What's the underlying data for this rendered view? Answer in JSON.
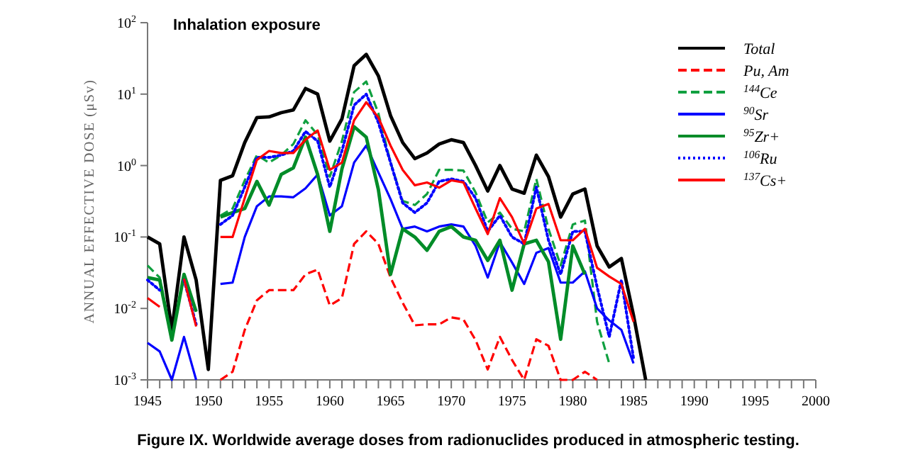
{
  "chart_data": {
    "type": "line",
    "title": "Inhalation exposure",
    "ylabel": "ANNUAL EFFECTIVE DOSE  (μSv)",
    "annotations": [
      "Figure IX.  Worldwide average doses from radionuclides produced in atmospheric testing."
    ],
    "x": [
      1945,
      1946,
      1947,
      1948,
      1949,
      1950,
      1951,
      1952,
      1953,
      1954,
      1955,
      1956,
      1957,
      1958,
      1959,
      1960,
      1961,
      1962,
      1963,
      1964,
      1965,
      1966,
      1967,
      1968,
      1969,
      1970,
      1971,
      1972,
      1973,
      1974,
      1975,
      1976,
      1977,
      1978,
      1979,
      1980,
      1981,
      1982,
      1983,
      1984,
      1985,
      1986
    ],
    "series": [
      {
        "name": "Total",
        "color": "#000000",
        "line_style": "solid",
        "values": [
          0.1,
          0.08,
          0.005,
          0.1,
          0.025,
          0.0014,
          0.62,
          0.72,
          2.1,
          4.7,
          4.8,
          5.5,
          6,
          12,
          10,
          2.2,
          4.5,
          25,
          36,
          18,
          5,
          2.1,
          1.25,
          1.5,
          2,
          2.3,
          2.1,
          1,
          0.44,
          1,
          0.47,
          0.41,
          1.4,
          0.7,
          0.19,
          0.4,
          0.47,
          0.075,
          0.038,
          0.05,
          0.008,
          0.001
        ]
      },
      {
        "name": "Pu, Am",
        "color": "#ff0000",
        "line_style": "dashed",
        "values": [
          null,
          null,
          null,
          null,
          null,
          null,
          0.001,
          0.0013,
          0.005,
          0.013,
          0.018,
          0.018,
          0.018,
          0.03,
          0.035,
          0.011,
          0.014,
          0.08,
          0.12,
          0.08,
          0.027,
          0.012,
          0.0058,
          0.006,
          0.006,
          0.0075,
          0.007,
          0.0036,
          0.0014,
          0.004,
          0.0019,
          0.001,
          0.0037,
          0.003,
          0.001,
          0.001,
          0.0013,
          0.001,
          null,
          null,
          null,
          null
        ]
      },
      {
        "name": "$^{144}$Ce",
        "color": "#10a040",
        "line_style": "dashed",
        "values": [
          0.04,
          0.027,
          0.0037,
          0.03,
          0.009,
          null,
          0.2,
          0.25,
          0.62,
          1.4,
          1.1,
          1.4,
          2,
          4.3,
          2.7,
          0.7,
          2.2,
          10.7,
          15,
          5.4,
          1.1,
          0.32,
          0.28,
          0.4,
          0.87,
          0.87,
          0.85,
          0.42,
          0.16,
          0.22,
          0.13,
          0.12,
          0.65,
          0.13,
          0.04,
          0.15,
          0.17,
          0.0065,
          0.0017,
          null,
          null,
          null
        ]
      },
      {
        "name": "$^{90}$Sr",
        "color": "#0000ff",
        "line_style": "solid",
        "values": [
          0.0033,
          0.0025,
          0.001,
          0.004,
          0.001,
          null,
          0.022,
          0.023,
          0.1,
          0.27,
          0.37,
          0.37,
          0.36,
          0.48,
          0.75,
          0.2,
          0.27,
          1.1,
          1.9,
          0.8,
          0.34,
          0.13,
          0.14,
          0.12,
          0.14,
          0.15,
          0.14,
          0.075,
          0.027,
          0.085,
          0.044,
          0.022,
          0.06,
          0.07,
          0.023,
          0.023,
          0.033,
          0.01,
          0.0068,
          0.005,
          0.0017,
          null
        ]
      },
      {
        "name": "$^{95}$Zr+",
        "color": "#008c28",
        "line_style": "solid",
        "values": [
          0.027,
          0.025,
          0.0036,
          0.03,
          0.009,
          null,
          0.19,
          0.22,
          0.25,
          0.6,
          0.28,
          0.75,
          0.93,
          2.5,
          0.75,
          0.12,
          0.9,
          3.5,
          2.5,
          0.46,
          0.03,
          0.13,
          0.1,
          0.065,
          0.12,
          0.14,
          0.1,
          0.09,
          0.047,
          0.09,
          0.018,
          0.08,
          0.09,
          0.045,
          0.0037,
          0.075,
          0.03,
          null,
          null,
          null,
          null,
          null
        ]
      },
      {
        "name": "$^{106}$Ru",
        "color": "#0000ff",
        "line_style": "dotted",
        "values": [
          0.025,
          0.018,
          null,
          0.025,
          0.006,
          null,
          0.15,
          0.2,
          0.5,
          1.3,
          1.3,
          1.4,
          1.6,
          3,
          2.2,
          0.5,
          1.6,
          7,
          10,
          4,
          1.1,
          0.3,
          0.22,
          0.3,
          0.6,
          0.65,
          0.6,
          0.35,
          0.12,
          0.2,
          0.1,
          0.08,
          0.5,
          0.09,
          0.03,
          0.12,
          0.12,
          0.02,
          0.004,
          0.025,
          0.002,
          null
        ]
      },
      {
        "name": "$^{137}$Cs+",
        "color": "#ff0000",
        "line_style": "solid",
        "values": [
          0.014,
          0.0105,
          null,
          0.026,
          0.0056,
          null,
          0.1,
          0.1,
          0.35,
          1.2,
          1.6,
          1.5,
          1.5,
          2.3,
          3.1,
          0.87,
          1.1,
          4.3,
          7.7,
          4.7,
          1.9,
          0.87,
          0.53,
          0.58,
          0.49,
          0.62,
          0.58,
          0.25,
          0.11,
          0.35,
          0.19,
          0.08,
          0.25,
          0.29,
          0.09,
          0.09,
          0.13,
          0.037,
          0.028,
          0.022,
          0.0065,
          null
        ]
      }
    ],
    "log": "y",
    "xlim": [
      1945,
      2000
    ],
    "ylim": [
      0.001,
      100
    ],
    "xticks": [
      1945,
      {
        "value": 1946,
        "label": null
      },
      {
        "value": 1947,
        "label": null
      },
      {
        "value": 1948,
        "label": null
      },
      {
        "value": 1949,
        "label": null
      },
      1950,
      {
        "value": 1951,
        "label": null
      },
      {
        "value": 1952,
        "label": null
      },
      {
        "value": 1953,
        "label": null
      },
      {
        "value": 1954,
        "label": null
      },
      1955,
      {
        "value": 1956,
        "label": null
      },
      {
        "value": 1957,
        "label": null
      },
      {
        "value": 1958,
        "label": null
      },
      {
        "value": 1959,
        "label": null
      },
      1960,
      {
        "value": 1961,
        "label": null
      },
      {
        "value": 1962,
        "label": null
      },
      {
        "value": 1963,
        "label": null
      },
      {
        "value": 1964,
        "label": null
      },
      1965,
      {
        "value": 1966,
        "label": null
      },
      {
        "value": 1967,
        "label": null
      },
      {
        "value": 1968,
        "label": null
      },
      {
        "value": 1969,
        "label": null
      },
      1970,
      {
        "value": 1971,
        "label": null
      },
      {
        "value": 1972,
        "label": null
      },
      {
        "value": 1973,
        "label": null
      },
      {
        "value": 1974,
        "label": null
      },
      1975,
      {
        "value": 1976,
        "label": null
      },
      {
        "value": 1977,
        "label": null
      },
      {
        "value": 1978,
        "label": null
      },
      {
        "value": 1979,
        "label": null
      },
      1980,
      {
        "value": 1981,
        "label": null
      },
      {
        "value": 1982,
        "label": null
      },
      {
        "value": 1983,
        "label": null
      },
      {
        "value": 1984,
        "label": null
      },
      1985,
      {
        "value": 1986,
        "label": null
      },
      {
        "value": 1987,
        "label": null
      },
      {
        "value": 1988,
        "label": null
      },
      {
        "value": 1989,
        "label": null
      },
      1990,
      {
        "value": 1991,
        "label": null
      },
      {
        "value": 1992,
        "label": null
      },
      {
        "value": 1993,
        "label": null
      },
      {
        "value": 1994,
        "label": null
      },
      1995,
      {
        "value": 1996,
        "label": null
      },
      {
        "value": 1997,
        "label": null
      },
      {
        "value": 1998,
        "label": null
      },
      {
        "value": 1999,
        "label": null
      },
      2000
    ],
    "yticks": [
      {
        "value": 0.001,
        "label": "10$^{-3}$"
      },
      {
        "value": 0.01,
        "label": "10$^{-2}$"
      },
      {
        "value": 0.1,
        "label": "10$^{-1}$"
      },
      {
        "value": 1,
        "label": "10$^{0}$"
      },
      {
        "value": 10,
        "label": "10$^{1}$"
      },
      {
        "value": 100,
        "label": "10$^{2}$"
      }
    ],
    "grid": false,
    "legend": "right"
  }
}
